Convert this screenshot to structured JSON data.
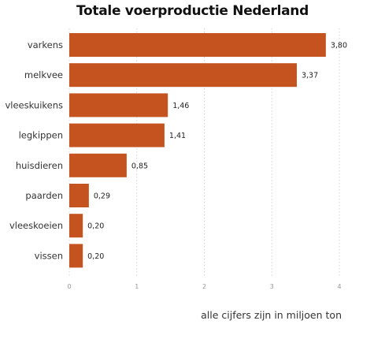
{
  "chart_data": {
    "type": "bar",
    "orientation": "horizontal",
    "title": "Totale voerproductie Nederland",
    "categories": [
      "varkens",
      "melkvee",
      "vleeskuikens",
      "legkippen",
      "huisdieren",
      "paarden",
      "vleeskoeien",
      "vissen"
    ],
    "values": [
      3.8,
      3.37,
      1.46,
      1.41,
      0.85,
      0.29,
      0.2,
      0.2
    ],
    "value_labels": [
      "3,80",
      "3,37",
      "1,46",
      "1,41",
      "0,85",
      "0,29",
      "0,20",
      "0,20"
    ],
    "xlim": [
      0,
      4
    ],
    "x_ticks": [
      "0",
      "1",
      "2",
      "3",
      "4"
    ],
    "grid": "vertical dotted",
    "note": "alle cijfers zijn in miljoen ton",
    "bar_color": "#c4531f"
  }
}
